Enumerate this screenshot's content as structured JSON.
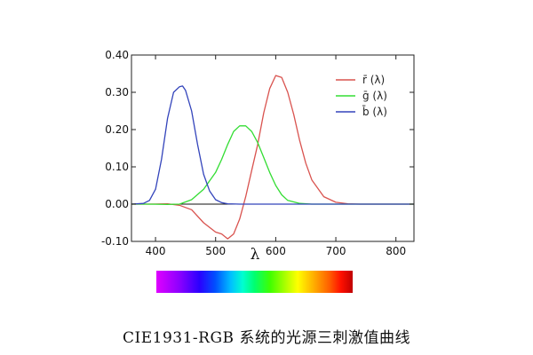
{
  "caption": "CIE1931-RGB 系统的光源三刺激值曲线",
  "chart_data": {
    "type": "line",
    "title": "",
    "xlabel": "λ",
    "ylabel": "",
    "xlim": [
      360,
      830
    ],
    "ylim": [
      -0.1,
      0.4
    ],
    "xticks": [
      "400",
      "500",
      "600",
      "700",
      "800"
    ],
    "yticks": [
      "-0.10",
      "0.00",
      "0.10",
      "0.20",
      "0.30",
      "0.40"
    ],
    "legend_position": "top-right",
    "grid": false,
    "series": [
      {
        "name": "r̄ (λ)",
        "color": "#d9534f",
        "x": [
          360,
          380,
          400,
          420,
          440,
          460,
          480,
          500,
          510,
          520,
          530,
          540,
          550,
          560,
          570,
          580,
          590,
          600,
          610,
          620,
          630,
          640,
          650,
          660,
          680,
          700,
          720,
          740,
          760,
          780,
          800,
          830
        ],
        "y": [
          0,
          0,
          0.0003,
          0.001,
          -0.003,
          -0.015,
          -0.05,
          -0.075,
          -0.08,
          -0.093,
          -0.08,
          -0.04,
          0.02,
          0.09,
          0.16,
          0.245,
          0.31,
          0.345,
          0.34,
          0.3,
          0.24,
          0.17,
          0.11,
          0.065,
          0.02,
          0.005,
          0.001,
          0,
          0,
          0,
          0,
          0
        ]
      },
      {
        "name": "ḡ (λ)",
        "color": "#33dd33",
        "x": [
          360,
          380,
          400,
          420,
          440,
          460,
          480,
          500,
          510,
          520,
          530,
          540,
          550,
          560,
          570,
          580,
          590,
          600,
          610,
          620,
          640,
          660,
          680,
          700,
          720,
          760,
          800,
          830
        ],
        "y": [
          0,
          0,
          -0.0002,
          -0.001,
          0.0,
          0.012,
          0.04,
          0.085,
          0.12,
          0.16,
          0.195,
          0.21,
          0.21,
          0.195,
          0.165,
          0.125,
          0.085,
          0.05,
          0.025,
          0.01,
          0.002,
          0,
          0,
          0,
          0,
          0,
          0,
          0
        ]
      },
      {
        "name": "b̄ (λ)",
        "color": "#3344bb",
        "x": [
          360,
          380,
          390,
          400,
          410,
          420,
          430,
          440,
          445,
          450,
          460,
          470,
          480,
          490,
          500,
          510,
          520,
          540,
          560,
          600,
          700,
          830
        ],
        "y": [
          0,
          0.002,
          0.01,
          0.04,
          0.12,
          0.23,
          0.3,
          0.315,
          0.317,
          0.305,
          0.25,
          0.16,
          0.08,
          0.035,
          0.012,
          0.004,
          0.001,
          0,
          0,
          0,
          0,
          0
        ]
      }
    ]
  }
}
